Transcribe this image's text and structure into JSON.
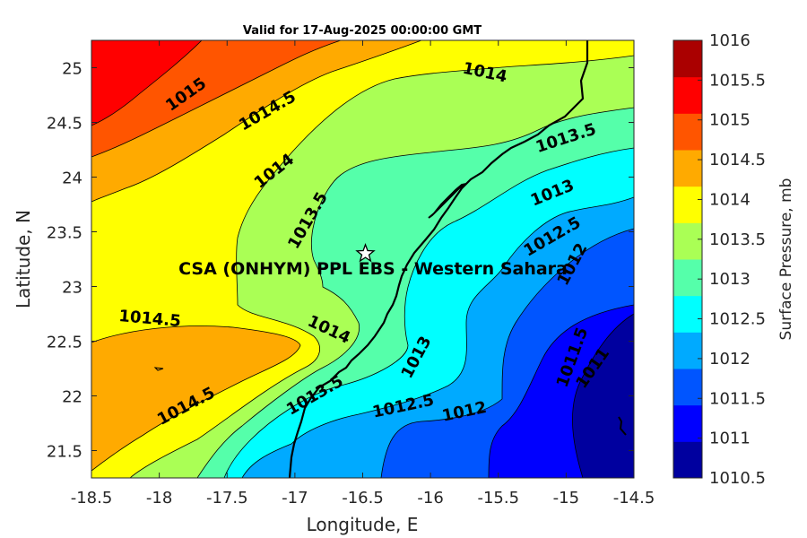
{
  "title": "Valid for 17-Aug-2025 00:00:00 GMT",
  "axes": {
    "xlabel": "Longitude, E",
    "ylabel": "Latitude, N",
    "xlim": [
      -18.5,
      -14.5
    ],
    "ylim": [
      21.25,
      25.25
    ],
    "xticks": [
      "-18.5",
      "-18",
      "-17.5",
      "-17",
      "-16.5",
      "-16",
      "-15.5",
      "-15",
      "-14.5"
    ],
    "yticks": [
      "21.5",
      "22",
      "22.5",
      "23",
      "23.5",
      "24",
      "24.5",
      "25"
    ]
  },
  "colorbar": {
    "label": "Surface Pressure, mb",
    "ticks": [
      "1010.5",
      "1011",
      "1011.5",
      "1012",
      "1012.5",
      "1013",
      "1013.5",
      "1014",
      "1014.5",
      "1015",
      "1015.5",
      "1016"
    ],
    "colors": [
      "#00009f",
      "#0000ff",
      "#0055ff",
      "#00aaff",
      "#00ffff",
      "#55ffaa",
      "#aaff55",
      "#ffff00",
      "#ffaa00",
      "#ff5500",
      "#ff0000",
      "#aa0000"
    ]
  },
  "site": {
    "name": "CSA (ONHYM) PPL EBS - Western Sahara",
    "lon": -16.48,
    "lat": 23.3
  },
  "contour_labels": [
    {
      "text": "1015",
      "lon": -17.8,
      "lat": 24.75,
      "rot": -35
    },
    {
      "text": "1014.5",
      "lon": -17.2,
      "lat": 24.6,
      "rot": -30
    },
    {
      "text": "1014",
      "lon": -15.6,
      "lat": 24.95,
      "rot": 12
    },
    {
      "text": "1014",
      "lon": -17.15,
      "lat": 24.05,
      "rot": -38
    },
    {
      "text": "1013.5",
      "lon": -16.9,
      "lat": 23.6,
      "rot": -60
    },
    {
      "text": "1013.5",
      "lon": -15.0,
      "lat": 24.35,
      "rot": -18
    },
    {
      "text": "1013",
      "lon": -15.1,
      "lat": 23.85,
      "rot": -22
    },
    {
      "text": "1012.5",
      "lon": -15.1,
      "lat": 23.45,
      "rot": -30
    },
    {
      "text": "1012",
      "lon": -14.95,
      "lat": 23.2,
      "rot": -62
    },
    {
      "text": "1014.5",
      "lon": -18.07,
      "lat": 22.7,
      "rot": 5
    },
    {
      "text": "1014",
      "lon": -16.75,
      "lat": 22.6,
      "rot": 25
    },
    {
      "text": "1013",
      "lon": -16.1,
      "lat": 22.35,
      "rot": -62
    },
    {
      "text": "1014.5",
      "lon": -17.8,
      "lat": 21.9,
      "rot": -28
    },
    {
      "text": "1013.5",
      "lon": -16.85,
      "lat": 22.0,
      "rot": -30
    },
    {
      "text": "1012.5",
      "lon": -16.2,
      "lat": 21.9,
      "rot": -12
    },
    {
      "text": "1012",
      "lon": -15.75,
      "lat": 21.85,
      "rot": -12
    },
    {
      "text": "1011.5",
      "lon": -14.95,
      "lat": 22.35,
      "rot": -70
    },
    {
      "text": "1011",
      "lon": -14.8,
      "lat": 22.25,
      "rot": -55
    }
  ]
}
